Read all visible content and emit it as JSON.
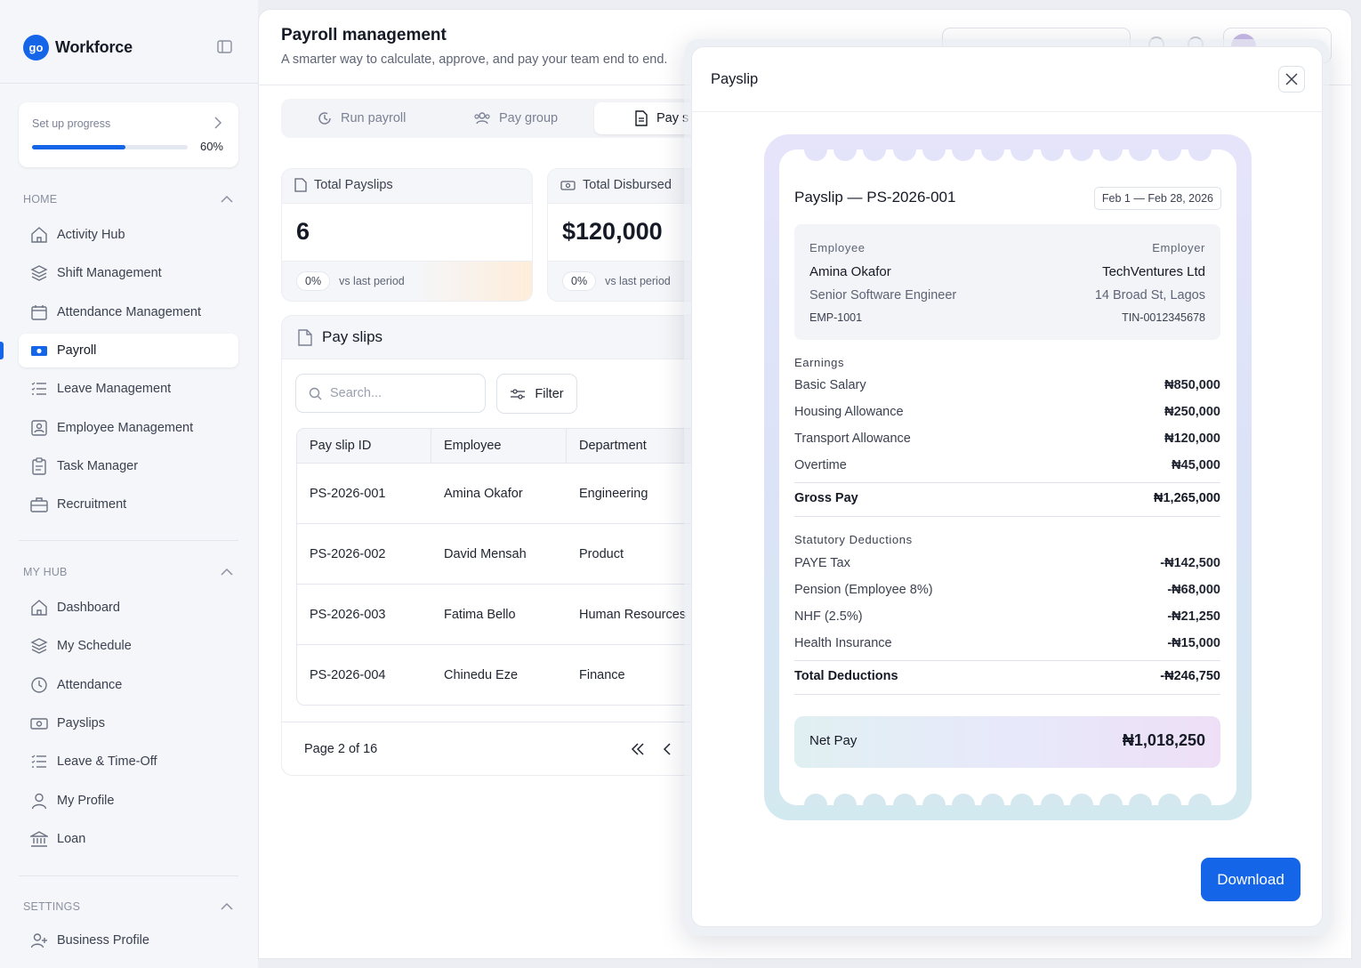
{
  "app": {
    "logo_glyph": "go",
    "name": "Workforce",
    "accent": "#1565e8"
  },
  "setup": {
    "title": "Set up progress",
    "progress": 60,
    "progress_label": "60%"
  },
  "sidebar": {
    "home_label": "HOME",
    "home_items": [
      {
        "label": "Activity Hub",
        "icon": "home-icon"
      },
      {
        "label": "Shift Management",
        "icon": "layers-icon"
      },
      {
        "label": "Attendance Management",
        "icon": "calendar-icon"
      },
      {
        "label": "Payroll",
        "icon": "money-icon",
        "active": true
      },
      {
        "label": "Leave Management",
        "icon": "list-icon"
      },
      {
        "label": "Employee Management",
        "icon": "id-card-icon"
      },
      {
        "label": "Task Manager",
        "icon": "clipboard-icon"
      },
      {
        "label": "Recruitment",
        "icon": "briefcase-icon"
      }
    ],
    "myhub_label": "MY HUB",
    "myhub_items": [
      {
        "label": "Dashboard",
        "icon": "home-icon"
      },
      {
        "label": "My Schedule",
        "icon": "layers-icon"
      },
      {
        "label": "Attendance",
        "icon": "clock-icon"
      },
      {
        "label": "Payslips",
        "icon": "money-icon"
      },
      {
        "label": "Leave & Time-Off",
        "icon": "list-icon"
      },
      {
        "label": "My Profile",
        "icon": "user-icon"
      },
      {
        "label": "Loan",
        "icon": "bank-icon"
      }
    ],
    "settings_label": "SETTINGS",
    "settings_items": [
      {
        "label": "Business Profile",
        "icon": "user-plus-icon"
      }
    ]
  },
  "header": {
    "title": "Payroll management",
    "subtitle": "A smarter way to calculate, approve, and pay your team end to end."
  },
  "tabs": [
    {
      "label": "Run payroll",
      "icon": "refresh-icon"
    },
    {
      "label": "Pay group",
      "icon": "users-icon"
    },
    {
      "label": "Pay s",
      "icon": "document-icon",
      "active": true
    }
  ],
  "stats": [
    {
      "title": "Total Payslips",
      "value": "6",
      "change": "0%",
      "change_label": "vs last period",
      "icon": "document-icon"
    },
    {
      "title": "Total Disbursed",
      "value": "$120,000",
      "change": "0%",
      "change_label": "vs last period",
      "icon": "cash-icon"
    }
  ],
  "payslips": {
    "title": "Pay slips",
    "search_placeholder": "Search...",
    "filter_label": "Filter",
    "columns": [
      "Pay slip ID",
      "Employee",
      "Department"
    ],
    "rows": [
      [
        "PS-2026-001",
        "Amina Okafor",
        "Engineering"
      ],
      [
        "PS-2026-002",
        "David Mensah",
        "Product"
      ],
      [
        "PS-2026-003",
        "Fatima Bello",
        "Human Resources"
      ],
      [
        "PS-2026-004",
        "Chinedu Eze",
        "Finance"
      ]
    ],
    "page_label": "Page 2 of 16"
  },
  "modal": {
    "title": "Payslip",
    "payslip_title": "Payslip — PS-2026-001",
    "period": "Feb 1 — Feb 28, 2026",
    "employee_label": "Employee",
    "employer_label": "Employer",
    "employee_name": "Amina Okafor",
    "employee_role": "Senior Software Engineer",
    "employee_id": "EMP-1001",
    "employer_name": "TechVentures Ltd",
    "employer_address": "14 Broad St, Lagos",
    "employer_tin": "TIN-0012345678",
    "earnings_label": "Earnings",
    "earnings": [
      {
        "label": "Basic Salary",
        "amount": "₦850,000"
      },
      {
        "label": "Housing Allowance",
        "amount": "₦250,000"
      },
      {
        "label": "Transport Allowance",
        "amount": "₦120,000"
      },
      {
        "label": "Overtime",
        "amount": "₦45,000"
      }
    ],
    "gross_label": "Gross Pay",
    "gross_amount": "₦1,265,000",
    "deductions_label": "Statutory Deductions",
    "deductions": [
      {
        "label": "PAYE Tax",
        "amount": "-₦142,500"
      },
      {
        "label": "Pension (Employee 8%)",
        "amount": "-₦68,000"
      },
      {
        "label": "NHF (2.5%)",
        "amount": "-₦21,250"
      },
      {
        "label": "Health Insurance",
        "amount": "-₦15,000"
      }
    ],
    "total_deductions_label": "Total Deductions",
    "total_deductions_amount": "-₦246,750",
    "net_label": "Net Pay",
    "net_amount": "₦1,018,250",
    "download_label": "Download"
  }
}
